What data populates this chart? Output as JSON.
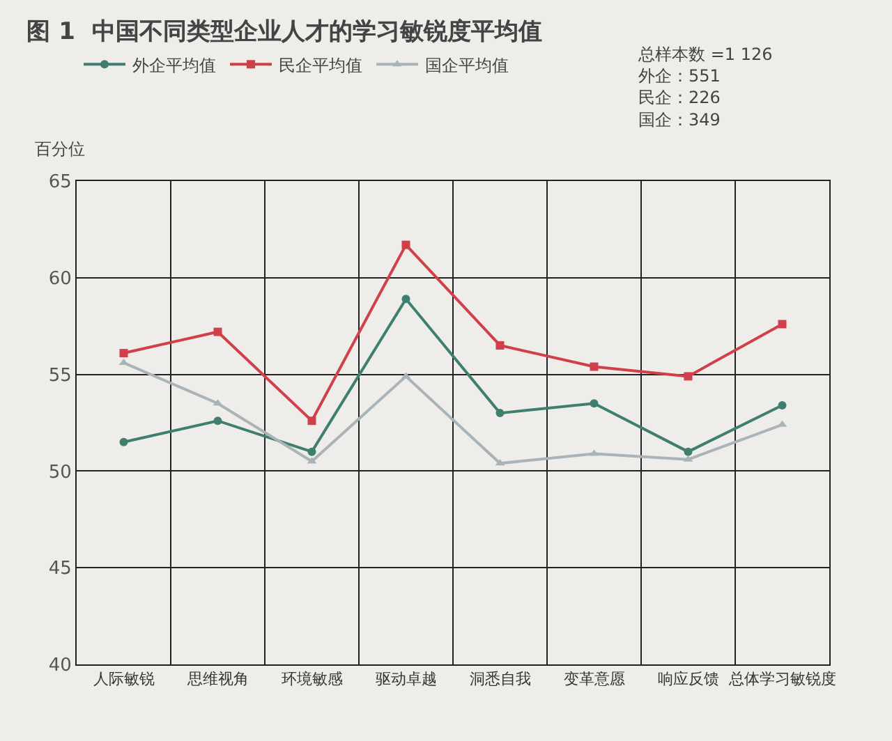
{
  "chart_data": {
    "type": "line",
    "title": "图 1  中国不同类型企业人才的学习敏锐度平均值",
    "ylabel": "百分位",
    "categories": [
      "人际敏锐",
      "思维视角",
      "环境敏感",
      "驱动卓越",
      "洞悉自我",
      "变革意愿",
      "响应反馈",
      "总体学习敏锐度"
    ],
    "series": [
      {
        "name": "外企平均值",
        "color": "#3f7f6f",
        "marker": "circle",
        "values": [
          51.5,
          52.6,
          51.0,
          58.9,
          53.0,
          53.5,
          51.0,
          53.4
        ]
      },
      {
        "name": "民企平均值",
        "color": "#d0404a",
        "marker": "square",
        "values": [
          56.1,
          57.2,
          52.6,
          61.7,
          56.5,
          55.4,
          54.9,
          57.6
        ]
      },
      {
        "name": "国企平均值",
        "color": "#a9b4b8",
        "marker": "triangle",
        "values": [
          55.6,
          53.5,
          50.5,
          54.9,
          50.4,
          50.9,
          50.6,
          52.4
        ]
      }
    ],
    "ylim": [
      40,
      65
    ],
    "yticks": [
      40,
      45,
      50,
      55,
      60,
      65
    ],
    "grid": true,
    "legend": "top",
    "line_style": "solid",
    "annotations": [
      "总样本数 =1 126\n外企：551\n民企：226\n国企：349"
    ]
  }
}
